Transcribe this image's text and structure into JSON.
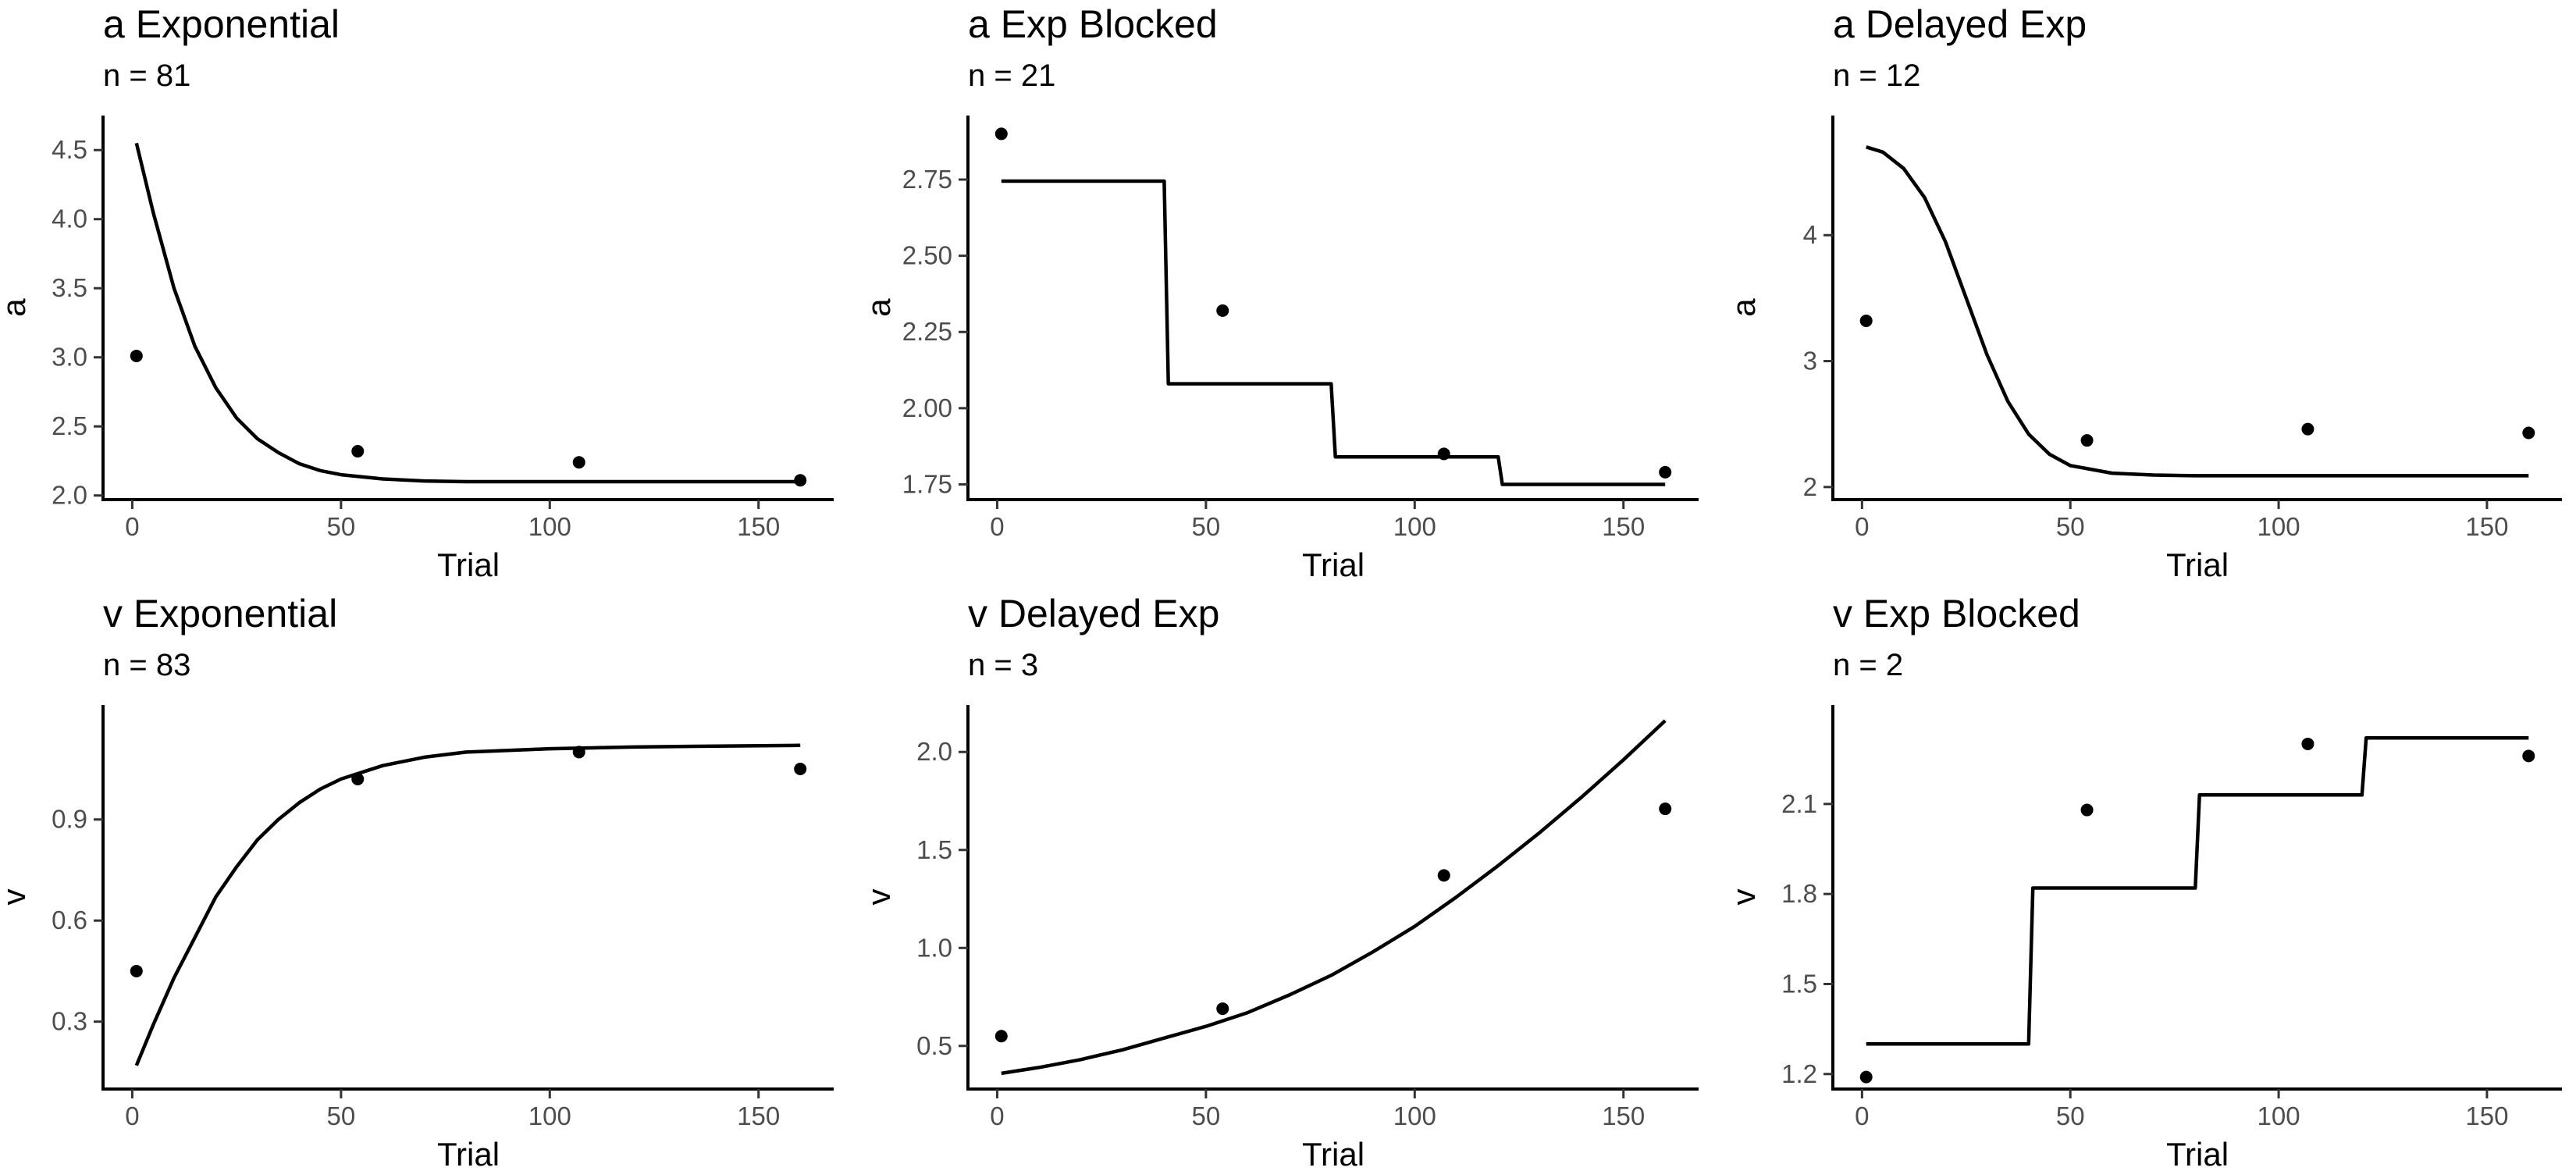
{
  "colors": {
    "curve": "#000000",
    "points": "#000000",
    "axis": "#000000",
    "tick_label": "#4d4d4d",
    "background": "#ffffff"
  },
  "chart_data": [
    {
      "type": "line",
      "title": "a Exponential",
      "subtitle": "n = 81",
      "xlabel": "Trial",
      "ylabel": "a",
      "xlim": [
        -7,
        168
      ],
      "ylim": [
        1.97,
        4.75
      ],
      "x_ticks": [
        0,
        50,
        100,
        150
      ],
      "x_tick_labels": [
        "0",
        "50",
        "100",
        "150"
      ],
      "y_ticks": [
        2.0,
        2.5,
        3.0,
        3.5,
        4.0,
        4.5
      ],
      "y_tick_labels": [
        "2.0",
        "2.5",
        "3.0",
        "3.5",
        "4.0",
        "4.5"
      ],
      "grid": false,
      "points": {
        "x": [
          1,
          54,
          107,
          160
        ],
        "y": [
          3.01,
          2.32,
          2.24,
          2.11
        ]
      },
      "curve": {
        "x": [
          1,
          5,
          10,
          15,
          20,
          25,
          30,
          35,
          40,
          45,
          50,
          60,
          70,
          80,
          100,
          120,
          140,
          160
        ],
        "y": [
          4.55,
          4.05,
          3.5,
          3.08,
          2.78,
          2.56,
          2.41,
          2.31,
          2.23,
          2.18,
          2.15,
          2.12,
          2.105,
          2.1,
          2.1,
          2.1,
          2.1,
          2.1
        ]
      }
    },
    {
      "type": "line",
      "title": "a Exp Blocked",
      "subtitle": "n = 21",
      "xlabel": "Trial",
      "ylabel": "a",
      "xlim": [
        -7,
        168
      ],
      "ylim": [
        1.7,
        2.96
      ],
      "x_ticks": [
        0,
        50,
        100,
        150
      ],
      "x_tick_labels": [
        "0",
        "50",
        "100",
        "150"
      ],
      "y_ticks": [
        1.75,
        2.0,
        2.25,
        2.5,
        2.75
      ],
      "y_tick_labels": [
        "1.75",
        "2.00",
        "2.25",
        "2.50",
        "2.75"
      ],
      "grid": false,
      "points": {
        "x": [
          1,
          54,
          107,
          160
        ],
        "y": [
          2.9,
          2.32,
          1.85,
          1.79
        ]
      },
      "curve": {
        "x": [
          1,
          40,
          41,
          80,
          81,
          120,
          121,
          160
        ],
        "y": [
          2.745,
          2.745,
          2.08,
          2.08,
          1.84,
          1.84,
          1.75,
          1.75
        ]
      }
    },
    {
      "type": "line",
      "title": "a Delayed Exp",
      "subtitle": "n = 12",
      "xlabel": "Trial",
      "ylabel": "a",
      "xlim": [
        -7,
        168
      ],
      "ylim": [
        1.9,
        4.95
      ],
      "x_ticks": [
        0,
        50,
        100,
        150
      ],
      "x_tick_labels": [
        "0",
        "50",
        "100",
        "150"
      ],
      "y_ticks": [
        2,
        3,
        4
      ],
      "y_tick_labels": [
        "2",
        "3",
        "4"
      ],
      "grid": false,
      "points": {
        "x": [
          1,
          54,
          107,
          160
        ],
        "y": [
          3.32,
          2.37,
          2.46,
          2.43
        ]
      },
      "curve": {
        "x": [
          1,
          5,
          10,
          15,
          20,
          25,
          30,
          35,
          40,
          45,
          50,
          60,
          70,
          80,
          100,
          130,
          160
        ],
        "y": [
          4.7,
          4.66,
          4.53,
          4.3,
          3.95,
          3.5,
          3.05,
          2.68,
          2.42,
          2.26,
          2.17,
          2.11,
          2.095,
          2.09,
          2.09,
          2.09,
          2.09
        ]
      }
    },
    {
      "type": "line",
      "title": "v Exponential",
      "subtitle": "n = 83",
      "xlabel": "Trial",
      "ylabel": "v",
      "xlim": [
        -7,
        168
      ],
      "ylim": [
        0.1,
        1.24
      ],
      "x_ticks": [
        0,
        50,
        100,
        150
      ],
      "x_tick_labels": [
        "0",
        "50",
        "100",
        "150"
      ],
      "y_ticks": [
        0.3,
        0.6,
        0.9
      ],
      "y_tick_labels": [
        "0.3",
        "0.6",
        "0.9"
      ],
      "grid": false,
      "points": {
        "x": [
          1,
          54,
          107,
          160
        ],
        "y": [
          0.45,
          1.02,
          1.1,
          1.05
        ]
      },
      "curve": {
        "x": [
          1,
          5,
          10,
          15,
          20,
          25,
          30,
          35,
          40,
          45,
          50,
          60,
          70,
          80,
          100,
          120,
          140,
          160
        ],
        "y": [
          0.17,
          0.29,
          0.43,
          0.55,
          0.67,
          0.76,
          0.84,
          0.9,
          0.95,
          0.99,
          1.02,
          1.06,
          1.085,
          1.1,
          1.11,
          1.115,
          1.118,
          1.12
        ]
      }
    },
    {
      "type": "line",
      "title": "v Delayed Exp",
      "subtitle": "n = 3",
      "xlabel": "Trial",
      "ylabel": "v",
      "xlim": [
        -7,
        168
      ],
      "ylim": [
        0.28,
        2.24
      ],
      "x_ticks": [
        0,
        50,
        100,
        150
      ],
      "x_tick_labels": [
        "0",
        "50",
        "100",
        "150"
      ],
      "y_ticks": [
        0.5,
        1.0,
        1.5,
        2.0
      ],
      "y_tick_labels": [
        "0.5",
        "1.0",
        "1.5",
        "2.0"
      ],
      "grid": false,
      "points": {
        "x": [
          1,
          54,
          107,
          160
        ],
        "y": [
          0.55,
          0.69,
          1.37,
          1.71
        ]
      },
      "curve": {
        "x": [
          1,
          10,
          20,
          30,
          40,
          50,
          60,
          70,
          80,
          90,
          100,
          110,
          120,
          130,
          140,
          150,
          160
        ],
        "y": [
          0.36,
          0.39,
          0.43,
          0.48,
          0.54,
          0.6,
          0.67,
          0.76,
          0.86,
          0.98,
          1.11,
          1.26,
          1.42,
          1.59,
          1.77,
          1.96,
          2.16
        ]
      }
    },
    {
      "type": "line",
      "title": "v Exp Blocked",
      "subtitle": "n = 2",
      "xlabel": "Trial",
      "ylabel": "v",
      "xlim": [
        -7,
        168
      ],
      "ylim": [
        1.15,
        2.43
      ],
      "x_ticks": [
        0,
        50,
        100,
        150
      ],
      "x_tick_labels": [
        "0",
        "50",
        "100",
        "150"
      ],
      "y_ticks": [
        1.2,
        1.5,
        1.8,
        2.1
      ],
      "y_tick_labels": [
        "1.2",
        "1.5",
        "1.8",
        "2.1"
      ],
      "grid": false,
      "points": {
        "x": [
          1,
          54,
          107,
          160
        ],
        "y": [
          1.19,
          2.08,
          2.3,
          2.26
        ]
      },
      "curve": {
        "x": [
          1,
          40,
          41,
          80,
          81,
          120,
          121,
          160
        ],
        "y": [
          1.3,
          1.3,
          1.82,
          1.82,
          2.13,
          2.13,
          2.32,
          2.32
        ]
      }
    }
  ]
}
